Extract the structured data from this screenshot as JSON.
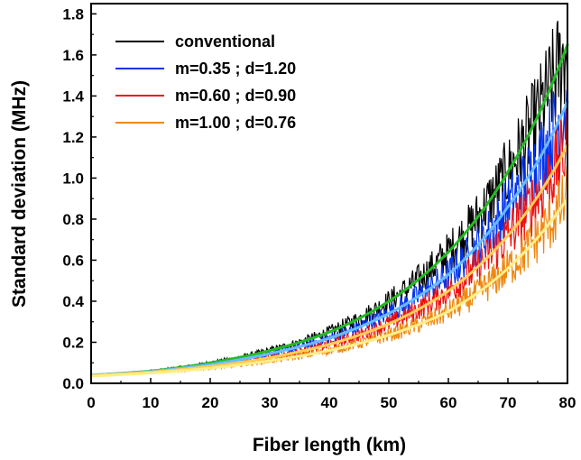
{
  "chart_data": {
    "type": "line",
    "title": "",
    "xlabel": "Fiber length (km)",
    "ylabel": "Standard deviation (MHz)",
    "xlim": [
      0,
      80
    ],
    "ylim": [
      0,
      1.85
    ],
    "xticks": [
      "0",
      "10",
      "20",
      "30",
      "40",
      "50",
      "60",
      "70",
      "80"
    ],
    "yticks": [
      "0.0",
      "0.2",
      "0.4",
      "0.6",
      "0.8",
      "1.0",
      "1.2",
      "1.4",
      "1.6",
      "1.8"
    ],
    "grid": false,
    "legend_position": "top-left",
    "x": [
      0,
      10,
      20,
      30,
      40,
      50,
      60,
      70,
      75,
      80
    ],
    "series": [
      {
        "name": "conventional",
        "color": "#000000",
        "fit_color": "#22bb22",
        "values": [
          0.04,
          0.06,
          0.1,
          0.16,
          0.25,
          0.4,
          0.64,
          1.03,
          1.3,
          1.65
        ]
      },
      {
        "name": "m=0.35 ; d=1.20",
        "color": "#0033ee",
        "fit_color": "#66bbff",
        "values": [
          0.04,
          0.058,
          0.092,
          0.145,
          0.22,
          0.34,
          0.53,
          0.86,
          1.08,
          1.37
        ]
      },
      {
        "name": "m=0.60 ; d=0.90",
        "color": "#ee1111",
        "fit_color": "#ffcc55",
        "values": [
          0.038,
          0.055,
          0.083,
          0.125,
          0.19,
          0.29,
          0.45,
          0.72,
          0.91,
          1.16
        ]
      },
      {
        "name": "m=1.00 ; d=0.76",
        "color": "#ee8811",
        "fit_color": "#ffee88",
        "values": [
          0.035,
          0.05,
          0.074,
          0.11,
          0.16,
          0.235,
          0.35,
          0.56,
          0.71,
          0.9
        ]
      }
    ]
  }
}
